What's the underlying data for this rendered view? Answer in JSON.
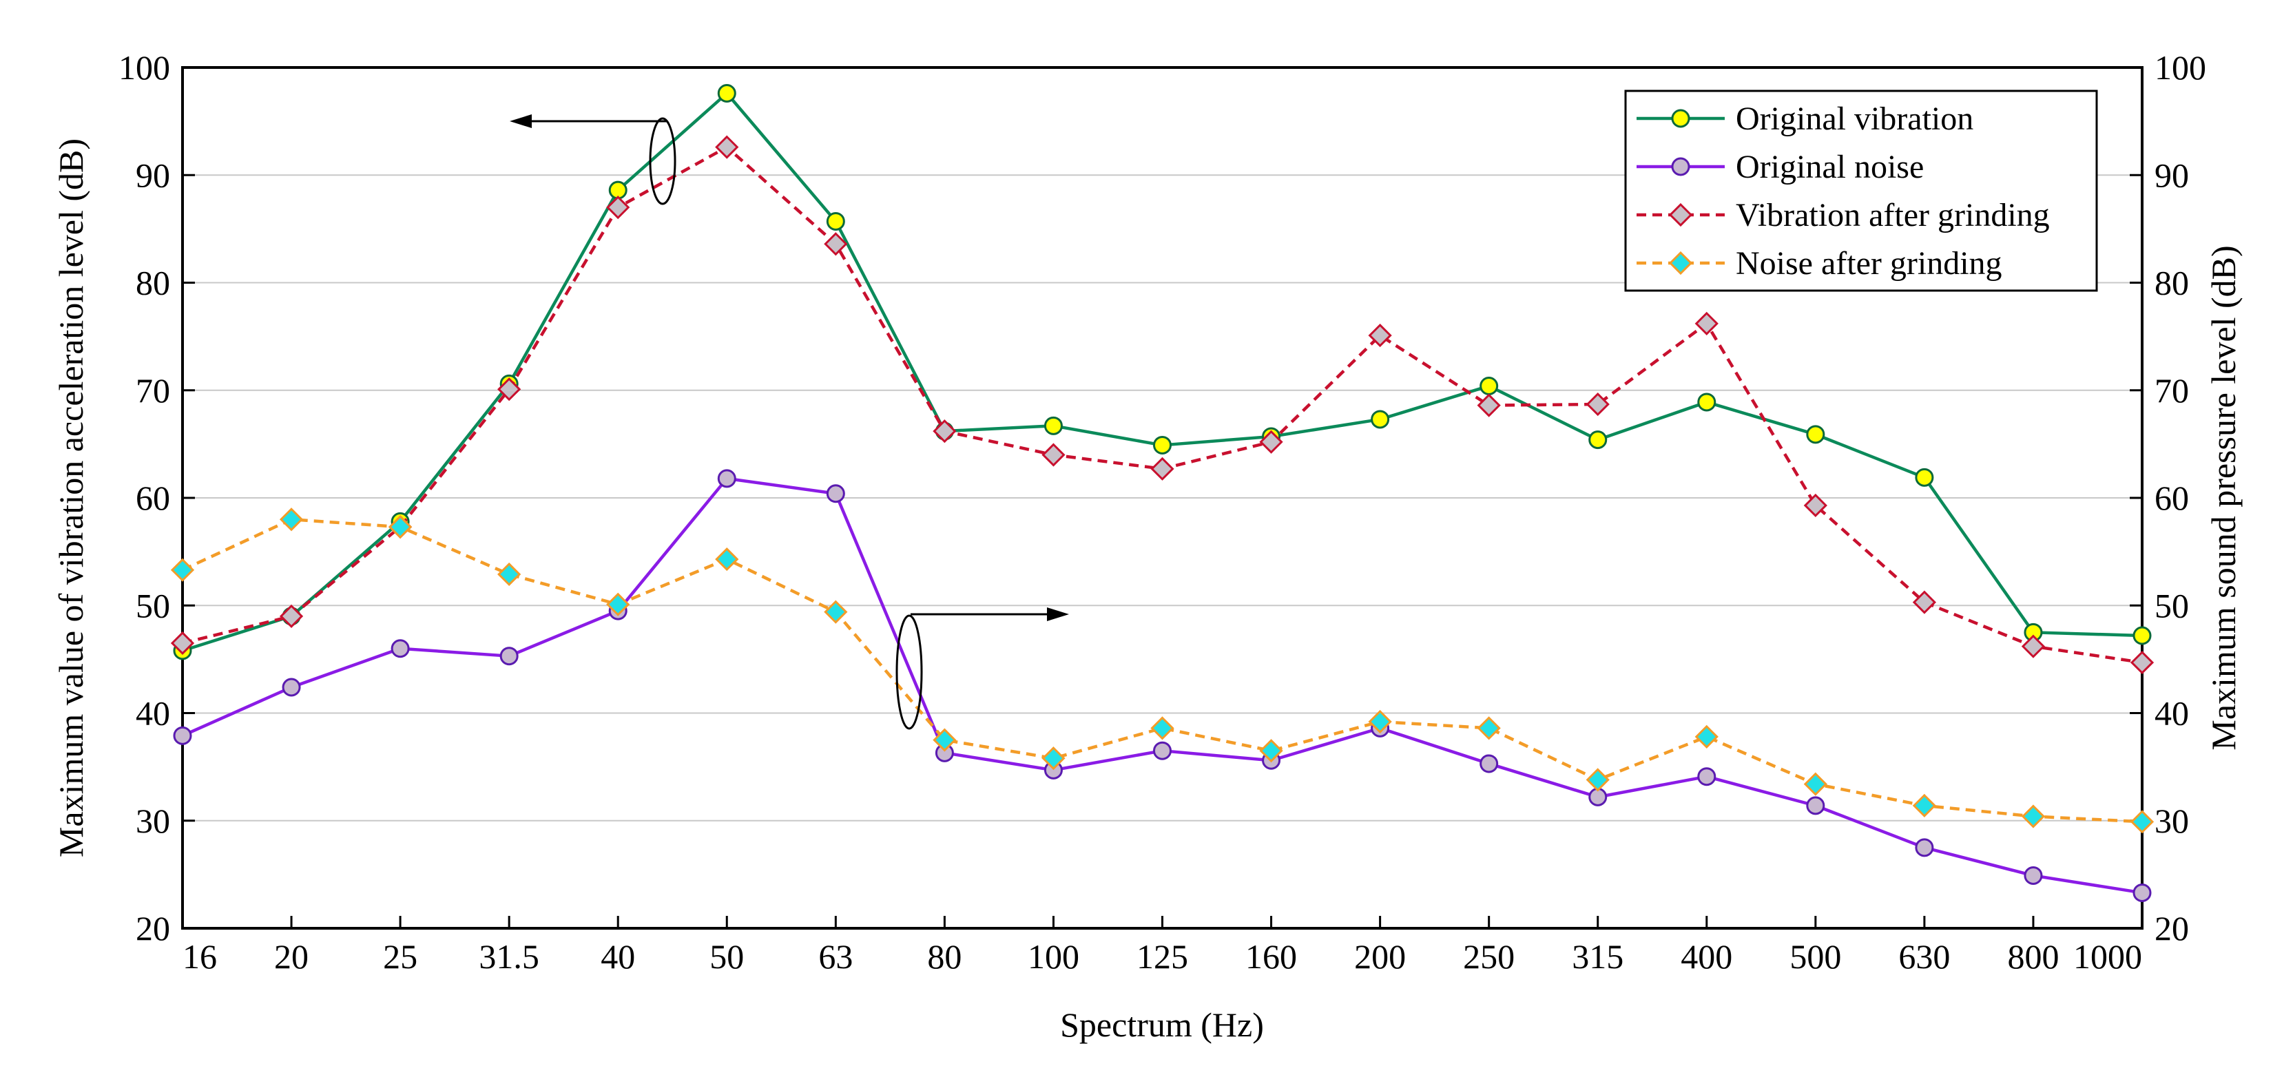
{
  "chart_data": {
    "type": "line",
    "title": "",
    "xlabel": "Spectrum (Hz)",
    "ylabel_left": "Maximum value of vibration acceleration level (dB)",
    "ylabel_right": "Maximum sound pressure level (dB)",
    "ylim": [
      20,
      100
    ],
    "yticks": [
      "20",
      "30",
      "40",
      "50",
      "60",
      "70",
      "80",
      "90",
      "100"
    ],
    "grid": true,
    "legend_position": "top-right",
    "categories": [
      "16",
      "20",
      "25",
      "31.5",
      "40",
      "50",
      "63",
      "80",
      "100",
      "125",
      "160",
      "200",
      "250",
      "315",
      "400",
      "500",
      "630",
      "800",
      "1000"
    ],
    "series": [
      {
        "name": "Original vibration",
        "axis": "left",
        "color": "#0b8a5a",
        "marker": "circle",
        "marker_fill": "#ffff00",
        "dash": "solid",
        "values": [
          45.8,
          49.0,
          57.8,
          70.6,
          88.6,
          97.6,
          85.7,
          66.2,
          66.7,
          64.9,
          65.7,
          67.3,
          70.4,
          65.4,
          68.9,
          65.9,
          61.9,
          47.5,
          47.2
        ]
      },
      {
        "name": "Original noise",
        "axis": "right",
        "color": "#8a1be6",
        "marker": "circle",
        "marker_fill": "#c8b8d0",
        "dash": "solid",
        "values": [
          37.9,
          42.4,
          46.0,
          45.3,
          49.5,
          61.8,
          60.4,
          36.3,
          34.7,
          36.5,
          35.6,
          38.6,
          35.3,
          32.2,
          34.1,
          31.4,
          27.5,
          24.9,
          23.3
        ]
      },
      {
        "name": "Vibration after grinding",
        "axis": "left",
        "color": "#c8102e",
        "marker": "diamond",
        "marker_fill": "#c8c0c8",
        "dash": "dashed",
        "values": [
          46.5,
          49.0,
          57.3,
          70.1,
          87.0,
          92.6,
          83.6,
          66.2,
          64.0,
          62.7,
          65.2,
          75.1,
          68.6,
          68.7,
          76.2,
          59.3,
          50.3,
          46.2,
          44.7
        ]
      },
      {
        "name": "Noise after grinding",
        "axis": "right",
        "color": "#f39c28",
        "marker": "diamond",
        "marker_fill": "#22e0e6",
        "dash": "dashed",
        "values": [
          53.3,
          58.0,
          57.3,
          52.9,
          50.1,
          54.3,
          49.4,
          37.5,
          35.8,
          38.6,
          36.5,
          39.2,
          38.6,
          33.8,
          37.8,
          33.4,
          31.4,
          30.4,
          29.9
        ]
      }
    ]
  }
}
